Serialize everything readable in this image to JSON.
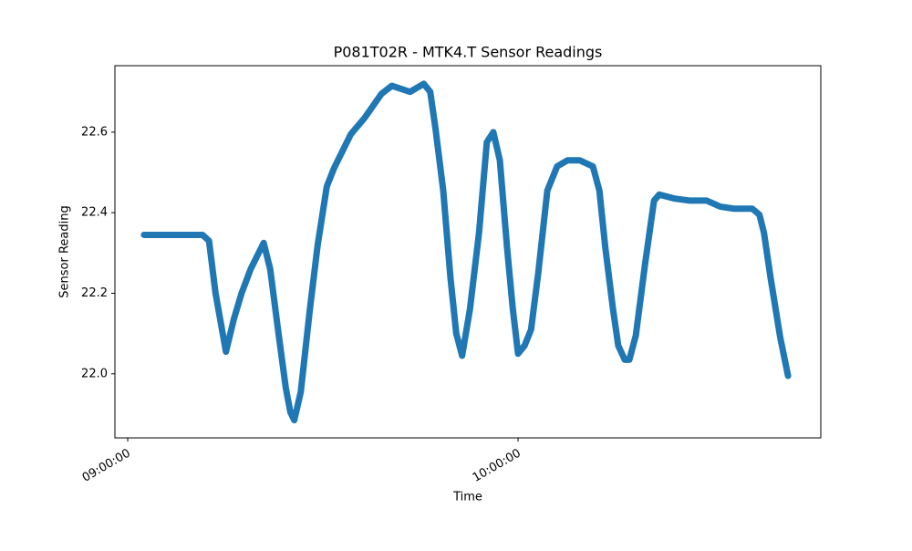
{
  "chart_data": {
    "type": "line",
    "title": "P081T02R - MTK4.T Sensor Readings",
    "x_label": "Time",
    "y_label": "Sensor Reading",
    "x": [
      "09:02:30",
      "09:11:30",
      "09:12:30",
      "09:13:30",
      "09:15:06",
      "09:16:18",
      "09:17:30",
      "09:18:54",
      "09:20:54",
      "09:21:54",
      "09:23:06",
      "09:24:18",
      "09:25:00",
      "09:25:36",
      "09:26:36",
      "09:28:00",
      "09:29:12",
      "09:30:36",
      "09:31:42",
      "09:34:18",
      "09:36:24",
      "09:39:00",
      "09:40:36",
      "09:43:24",
      "09:45:30",
      "09:46:30",
      "09:47:18",
      "09:48:30",
      "09:49:36",
      "09:50:30",
      "09:51:24",
      "09:52:36",
      "09:54:00",
      "09:55:12",
      "09:56:12",
      "09:57:12",
      "09:58:18",
      "09:59:12",
      "10:00:00",
      "10:01:00",
      "10:02:00",
      "10:03:06",
      "10:04:30",
      "10:06:00",
      "10:07:36",
      "10:09:30",
      "10:11:30",
      "10:12:30",
      "10:13:24",
      "10:14:36",
      "10:15:24",
      "10:16:24",
      "10:17:06",
      "10:18:06",
      "10:19:30",
      "10:20:54",
      "10:21:42",
      "10:24:06",
      "10:26:24",
      "10:29:00",
      "10:31:06",
      "10:33:12",
      "10:36:00",
      "10:37:06",
      "10:37:48",
      "10:38:48",
      "10:40:18",
      "10:41:30"
    ],
    "series": [
      {
        "color": "#1f77b4",
        "values": [
          22.345,
          22.345,
          22.33,
          22.2,
          22.055,
          22.135,
          22.2,
          22.26,
          22.325,
          22.26,
          22.11,
          21.965,
          21.905,
          21.885,
          21.955,
          22.16,
          22.32,
          22.465,
          22.51,
          22.595,
          22.635,
          22.695,
          22.715,
          22.7,
          22.72,
          22.7,
          22.61,
          22.455,
          22.24,
          22.1,
          22.045,
          22.16,
          22.35,
          22.575,
          22.6,
          22.53,
          22.315,
          22.16,
          22.05,
          22.07,
          22.11,
          22.25,
          22.455,
          22.515,
          22.53,
          22.53,
          22.515,
          22.455,
          22.315,
          22.16,
          22.07,
          22.035,
          22.035,
          22.095,
          22.27,
          22.43,
          22.445,
          22.435,
          22.43,
          22.43,
          22.415,
          22.41,
          22.41,
          22.395,
          22.35,
          22.24,
          22.09,
          21.995
        ]
      }
    ],
    "xlim": [
      "08:58:02",
      "10:46:32"
    ],
    "xticks": [
      "09:00:00",
      "10:00:00"
    ],
    "ylim": [
      21.841,
      22.765
    ],
    "yticks": [
      {
        "value": 22,
        "label": "22.0"
      },
      22.2,
      22.4,
      22.6
    ]
  }
}
